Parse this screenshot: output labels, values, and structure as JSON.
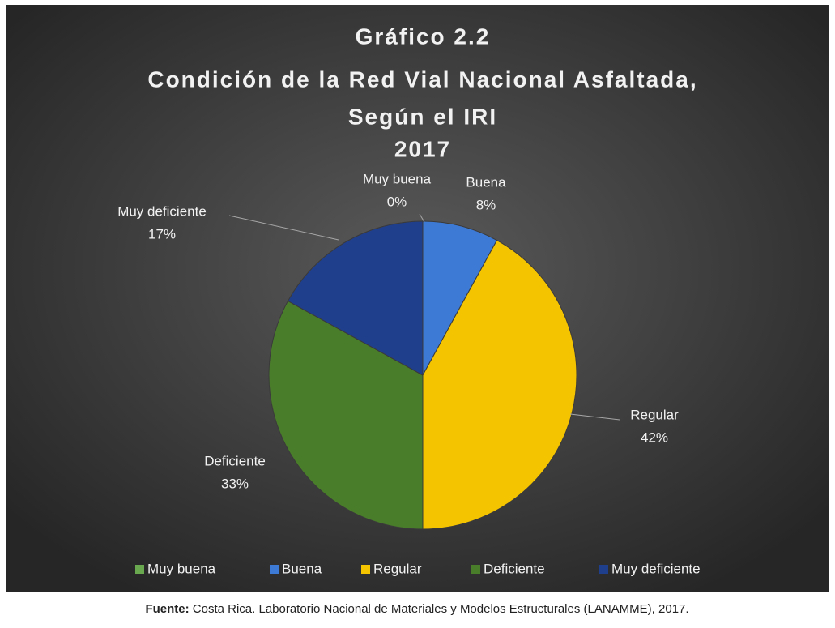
{
  "chart_data": {
    "type": "pie",
    "title": [
      "Gráfico 2.2",
      "Condición de la Red Vial Nacional Asfaltada,",
      "Según el IRI",
      "2017"
    ],
    "categories": [
      "Muy buena",
      "Buena",
      "Regular",
      "Deficiente",
      "Muy deficiente"
    ],
    "values": [
      0,
      8,
      42,
      33,
      17
    ],
    "value_labels": [
      "0%",
      "8%",
      "42%",
      "33%",
      "17%"
    ],
    "colors": [
      "#6aa84f",
      "#3d7ad6",
      "#f5c400",
      "#4a7d2a",
      "#1f3f8c"
    ],
    "legend": "bottom"
  },
  "footer": {
    "label": "Fuente:",
    "text": " Costa Rica. Laboratorio Nacional de Materiales y Modelos Estructurales (LANAMME), 2017."
  }
}
